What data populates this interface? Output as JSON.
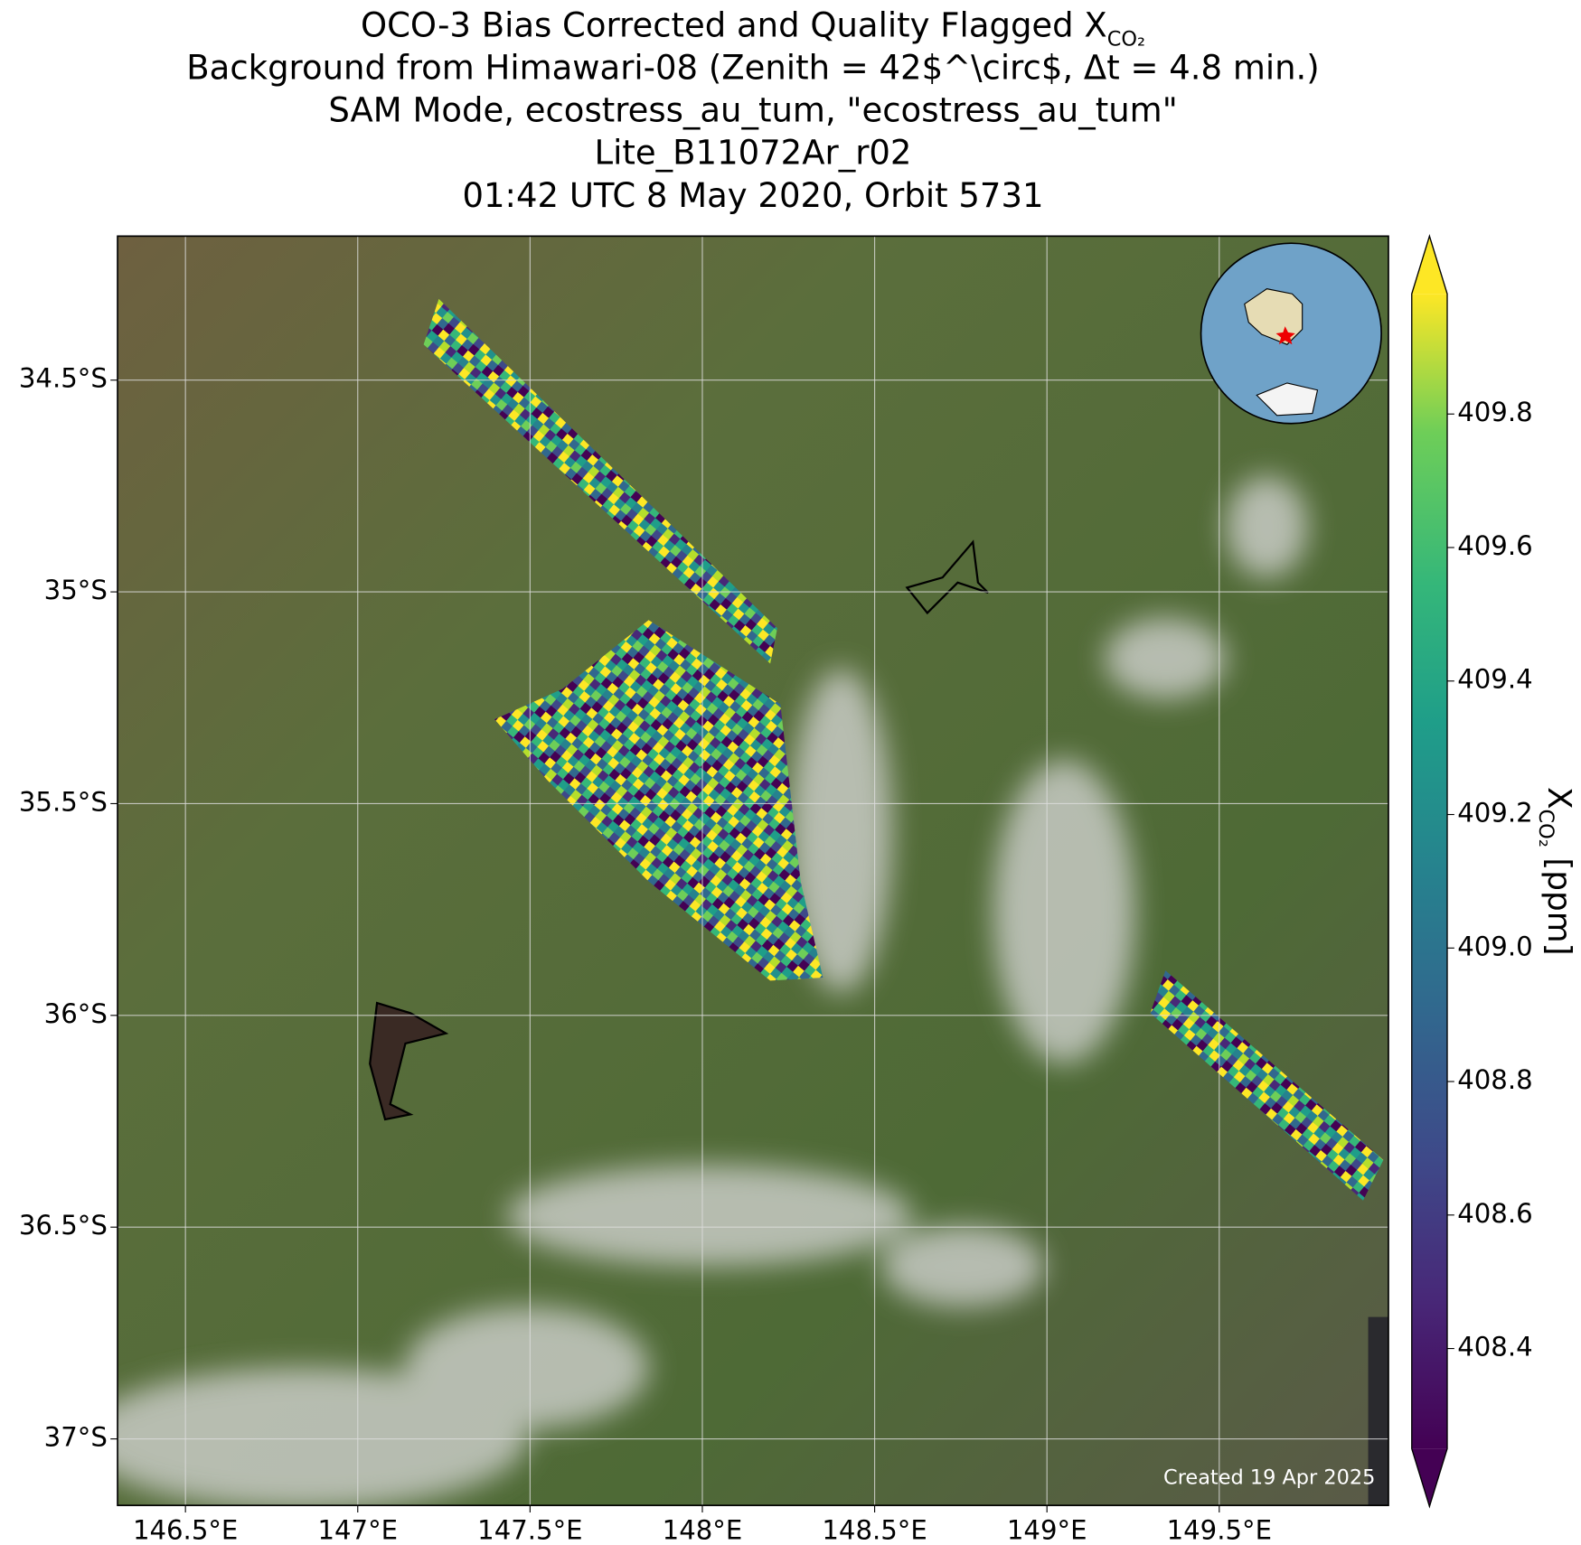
{
  "chart_data": {
    "type": "map",
    "title_lines": [
      "OCO-3 Bias Corrected and Quality Flagged X",
      "Background from Himawari-08 (Zenith = 42$^\\circ$, Δt =  4.8 min.)",
      "SAM Mode, ecostress_au_tum, \"ecostress_au_tum\"",
      "Lite_B11072Ar_r02",
      "01:42 UTC 8 May 2020, Orbit 5731"
    ],
    "title_subscript": "CO₂",
    "xlim": [
      146.303,
      149.991
    ],
    "ylim": [
      -37.157,
      -34.16
    ],
    "xticks": [
      {
        "value": 146.5,
        "label": "146.5°E"
      },
      {
        "value": 147,
        "label": "147°E"
      },
      {
        "value": 147.5,
        "label": "147.5°E"
      },
      {
        "value": 148,
        "label": "148°E"
      },
      {
        "value": 148.5,
        "label": "148.5°E"
      },
      {
        "value": 149,
        "label": "149°E"
      },
      {
        "value": 149.5,
        "label": "149.5°E"
      }
    ],
    "yticks": [
      {
        "value": -34.5,
        "label": "34.5°S"
      },
      {
        "value": -35,
        "label": "35°S"
      },
      {
        "value": -35.5,
        "label": "35.5°S"
      },
      {
        "value": -36,
        "label": "36°S"
      },
      {
        "value": -36.5,
        "label": "36.5°S"
      },
      {
        "value": -37,
        "label": "37°S"
      }
    ],
    "grid": true,
    "colorbar": {
      "label": "X",
      "label_subscript": "CO₂",
      "label_unit": " [ppm]",
      "colormap": "viridis",
      "lim": [
        408.25,
        409.98
      ],
      "ticks": [
        408.4,
        408.6,
        408.8,
        {
          "value": 409,
          "label": "409.0"
        },
        409.2,
        409.4,
        409.6,
        409.8
      ]
    },
    "note": "Created 19 Apr 2025"
  }
}
